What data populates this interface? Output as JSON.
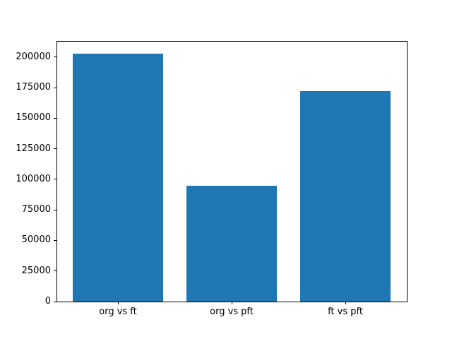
{
  "chart_data": {
    "type": "bar",
    "categories": [
      "org vs ft",
      "org vs pft",
      "ft vs pft"
    ],
    "values": [
      203000,
      94500,
      172000
    ],
    "title": "",
    "xlabel": "",
    "ylabel": "",
    "yticks": [
      0,
      25000,
      50000,
      75000,
      100000,
      125000,
      150000,
      175000,
      200000
    ],
    "ylim": [
      0,
      213150
    ],
    "bar_color": "#1f77b4",
    "axis_color": "#000000",
    "text_color": "#000000",
    "background_color": "#ffffff",
    "grid": false,
    "legend": false
  }
}
